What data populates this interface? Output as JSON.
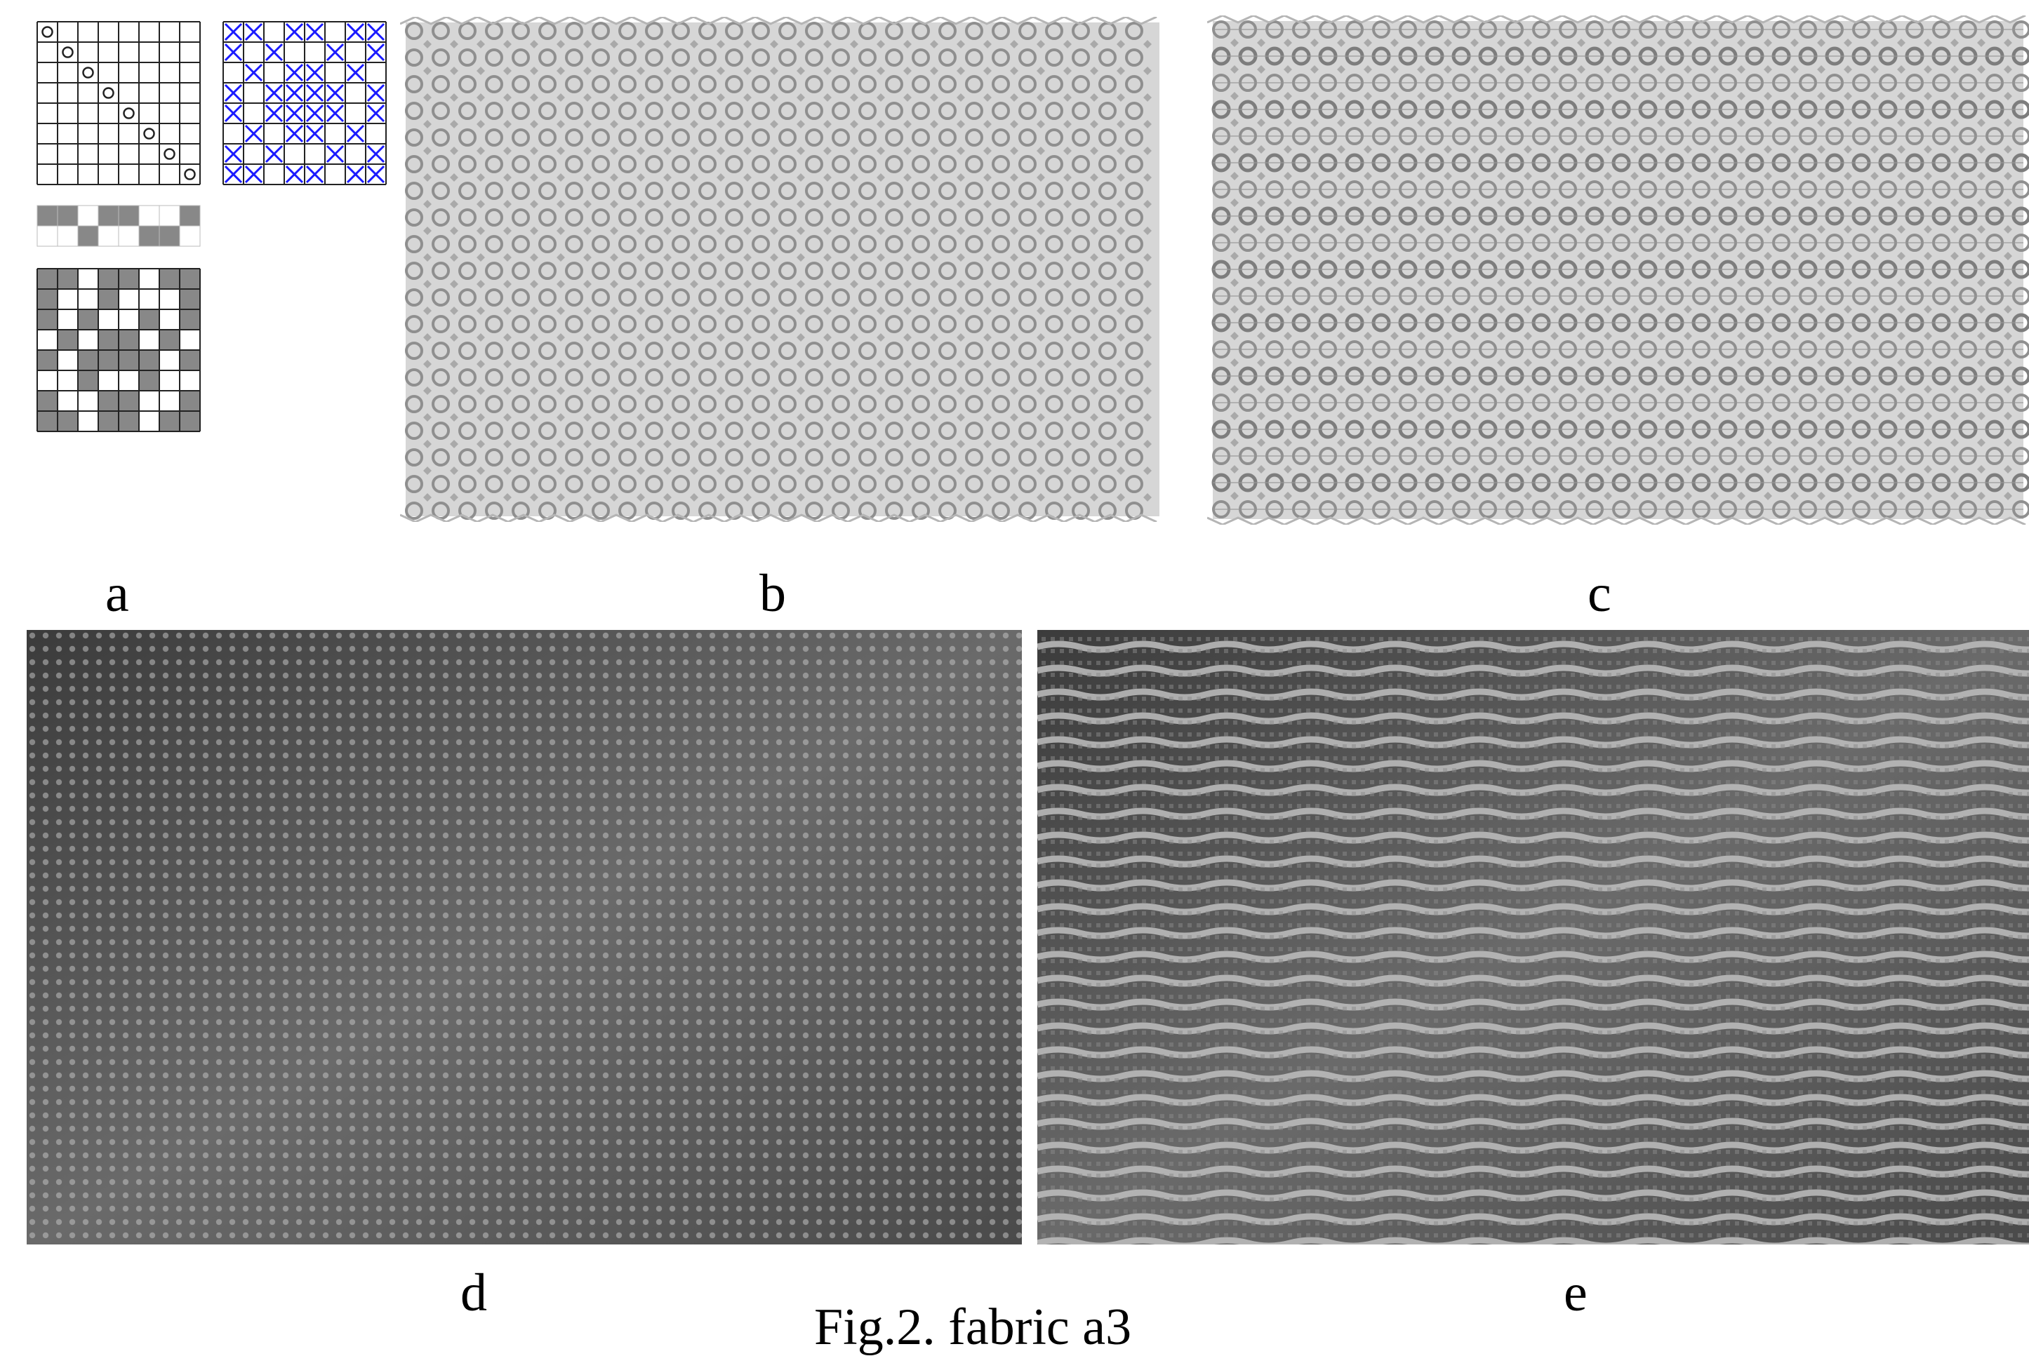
{
  "figure": {
    "caption": "Fig.2. fabric a3",
    "panels": [
      {
        "id": "a",
        "label": "a"
      },
      {
        "id": "b",
        "label": "b"
      },
      {
        "id": "c",
        "label": "c"
      },
      {
        "id": "d",
        "label": "d"
      },
      {
        "id": "e",
        "label": "e"
      }
    ]
  },
  "colors": {
    "grid_line": "#222222",
    "shaded_cell": "#888888",
    "blue_cross": "#1a1aff",
    "fabric_light": "#d6d6d6",
    "fabric_dark": "#8f8f8f",
    "photo_dark": "#2e2e2e",
    "photo_light": "#bfbfbf"
  }
}
